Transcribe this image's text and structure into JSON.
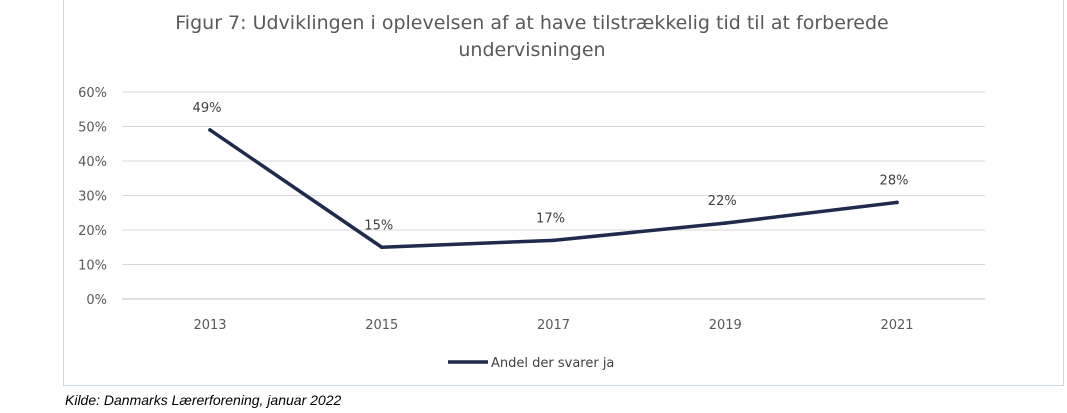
{
  "chart_data": {
    "type": "line",
    "title_lines": [
      "Figur 7: Udviklingen i oplevelsen af at have tilstrækkelig tid til at forberede",
      "undervisningen"
    ],
    "categories": [
      "2013",
      "2015",
      "2017",
      "2019",
      "2021"
    ],
    "series": [
      {
        "name": "Andel der svarer ja",
        "values": [
          49,
          15,
          17,
          22,
          28
        ],
        "labels": [
          "49%",
          "15%",
          "17%",
          "22%",
          "28%"
        ]
      }
    ],
    "yticks": [
      "0%",
      "10%",
      "20%",
      "30%",
      "40%",
      "50%",
      "60%"
    ],
    "ylim": [
      0,
      60
    ],
    "grid": true,
    "legend": "bottom",
    "line_color": "#1f2a4d"
  },
  "source": "Kilde: Danmarks Lærerforening, januar 2022"
}
